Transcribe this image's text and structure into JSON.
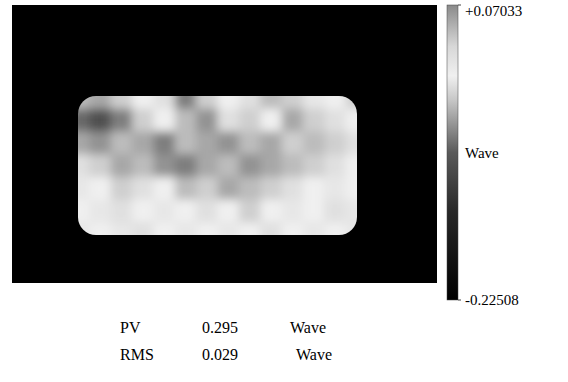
{
  "chart_data": {
    "type": "heatmap",
    "cells": [
      [
        -0.03,
        -0.04,
        -0.02,
        0.0,
        -0.01,
        -0.06,
        -0.02,
        0.0,
        -0.01,
        -0.03,
        -0.02,
        0.01,
        0.0,
        -0.02
      ],
      [
        -0.07,
        -0.09,
        -0.06,
        -0.02,
        0.0,
        -0.03,
        -0.05,
        -0.01,
        -0.02,
        0.0,
        -0.04,
        -0.02,
        -0.01,
        0.0
      ],
      [
        -0.04,
        -0.05,
        -0.03,
        -0.04,
        -0.06,
        -0.03,
        -0.04,
        -0.05,
        -0.03,
        -0.04,
        -0.02,
        -0.03,
        -0.02,
        -0.01
      ],
      [
        -0.01,
        -0.02,
        -0.04,
        -0.03,
        -0.05,
        -0.06,
        -0.04,
        -0.03,
        -0.05,
        -0.04,
        -0.03,
        -0.02,
        -0.01,
        0.0
      ],
      [
        0.01,
        0.0,
        -0.02,
        -0.01,
        0.0,
        -0.03,
        -0.02,
        -0.04,
        -0.03,
        -0.02,
        -0.01,
        0.0,
        0.01,
        0.0
      ],
      [
        0.0,
        0.01,
        -0.01,
        0.0,
        0.01,
        0.0,
        -0.01,
        0.0,
        -0.02,
        0.0,
        0.01,
        0.0,
        -0.01,
        0.01
      ],
      [
        0.01,
        0.0,
        0.01,
        -0.01,
        0.0,
        0.01,
        0.0,
        0.01,
        0.0,
        -0.01,
        0.0,
        0.01,
        0.0,
        0.01
      ]
    ],
    "colorbar": {
      "range": [
        -0.22508,
        0.07033
      ],
      "ticks": [
        {
          "value": 0.07033,
          "label": "+0.07033"
        },
        -0.22508
      ],
      "label": "Wave"
    },
    "stats": [
      {
        "name": "PV",
        "value": 0.295,
        "unit": "Wave"
      },
      {
        "name": "RMS",
        "value": 0.029,
        "unit": "Wave"
      }
    ]
  }
}
